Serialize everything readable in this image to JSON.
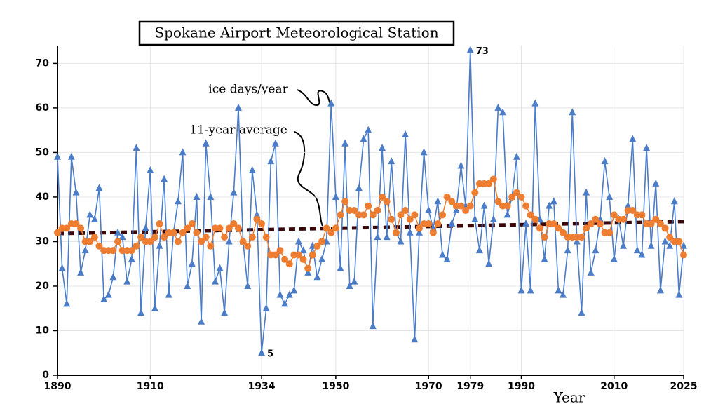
{
  "chart_data": {
    "type": "line",
    "title": "Spokane Airport Meteorological Station",
    "x_label": "Year",
    "x": [
      1890,
      1891,
      1892,
      1893,
      1894,
      1895,
      1896,
      1897,
      1898,
      1899,
      1900,
      1901,
      1902,
      1903,
      1904,
      1905,
      1906,
      1907,
      1908,
      1909,
      1910,
      1911,
      1912,
      1913,
      1914,
      1915,
      1916,
      1917,
      1918,
      1919,
      1920,
      1921,
      1922,
      1923,
      1924,
      1925,
      1926,
      1927,
      1928,
      1929,
      1930,
      1931,
      1932,
      1933,
      1934,
      1935,
      1936,
      1937,
      1938,
      1939,
      1940,
      1941,
      1942,
      1943,
      1944,
      1945,
      1946,
      1947,
      1948,
      1949,
      1950,
      1951,
      1952,
      1953,
      1954,
      1955,
      1956,
      1957,
      1958,
      1959,
      1960,
      1961,
      1962,
      1963,
      1964,
      1965,
      1966,
      1967,
      1968,
      1969,
      1970,
      1971,
      1972,
      1973,
      1974,
      1975,
      1976,
      1977,
      1978,
      1979,
      1980,
      1981,
      1982,
      1983,
      1984,
      1985,
      1986,
      1987,
      1988,
      1989,
      1990,
      1991,
      1992,
      1993,
      1994,
      1995,
      1996,
      1997,
      1998,
      1999,
      2000,
      2001,
      2002,
      2003,
      2004,
      2005,
      2006,
      2007,
      2008,
      2009,
      2010,
      2011,
      2012,
      2013,
      2014,
      2015,
      2016,
      2017,
      2018,
      2019,
      2020,
      2021,
      2022,
      2023,
      2024,
      2025
    ],
    "series": [
      {
        "name": "ice days/year",
        "color": "#4a7cc8",
        "marker": "triangle",
        "values": [
          49,
          24,
          16,
          49,
          41,
          23,
          28,
          36,
          35,
          42,
          17,
          18,
          22,
          32,
          31,
          21,
          26,
          51,
          14,
          33,
          46,
          15,
          29,
          44,
          18,
          32,
          39,
          50,
          20,
          25,
          40,
          12,
          52,
          40,
          21,
          24,
          14,
          30,
          41,
          60,
          30,
          20,
          46,
          36,
          5,
          15,
          48,
          52,
          18,
          16,
          18,
          19,
          30,
          28,
          23,
          29,
          22,
          26,
          30,
          61,
          40,
          24,
          52,
          20,
          21,
          42,
          53,
          55,
          11,
          31,
          51,
          31,
          48,
          32,
          30,
          54,
          32,
          8,
          32,
          50,
          37,
          33,
          39,
          27,
          26,
          34,
          37,
          47,
          38,
          73,
          35,
          28,
          38,
          25,
          35,
          60,
          59,
          36,
          40,
          49,
          19,
          34,
          19,
          61,
          35,
          26,
          38,
          39,
          19,
          18,
          28,
          59,
          30,
          14,
          41,
          23,
          28,
          35,
          48,
          40,
          26,
          35,
          29,
          38,
          53,
          28,
          27,
          51,
          29,
          43,
          19,
          30,
          29,
          39,
          18,
          29
        ]
      },
      {
        "name": "11-year average",
        "color": "#ed7d31",
        "marker": "circle",
        "values": [
          32,
          33,
          33,
          34,
          34,
          33,
          30,
          30,
          31,
          29,
          28,
          28,
          28,
          30,
          28,
          28,
          28,
          29,
          31,
          30,
          30,
          31,
          34,
          31,
          32,
          32,
          30,
          32,
          33,
          34,
          32,
          30,
          31,
          29,
          33,
          33,
          31,
          33,
          34,
          33,
          30,
          29,
          31,
          35,
          34,
          31,
          27,
          27,
          28,
          26,
          25,
          27,
          27,
          26,
          24,
          27,
          29,
          30,
          33,
          32,
          33,
          36,
          39,
          37,
          37,
          36,
          36,
          38,
          36,
          37,
          40,
          39,
          35,
          32,
          36,
          37,
          35,
          36,
          33,
          34,
          34,
          32,
          34,
          36,
          40,
          39,
          38,
          38,
          37,
          38,
          41,
          43,
          43,
          43,
          44,
          39,
          38,
          38,
          40,
          41,
          40,
          38,
          36,
          35,
          33,
          31,
          34,
          34,
          33,
          32,
          31,
          31,
          31,
          31,
          33,
          34,
          35,
          34,
          32,
          32,
          36,
          35,
          35,
          37,
          37,
          36,
          36,
          34,
          34,
          35,
          34,
          33,
          31,
          30,
          30,
          27
        ]
      },
      {
        "color": "#3a0808",
        "marker": "dashed",
        "x": [
          1890,
          2025
        ],
        "values": [
          31.8,
          34.5
        ]
      }
    ],
    "xlim": [
      1890,
      2025
    ],
    "xticks": [
      1890,
      1910,
      1934,
      1950,
      1970,
      1979,
      1990,
      2010,
      2025
    ],
    "ylim": [
      0,
      74
    ],
    "yticks": [
      0,
      10,
      20,
      30,
      40,
      50,
      60,
      70
    ],
    "grid": true
  }
}
